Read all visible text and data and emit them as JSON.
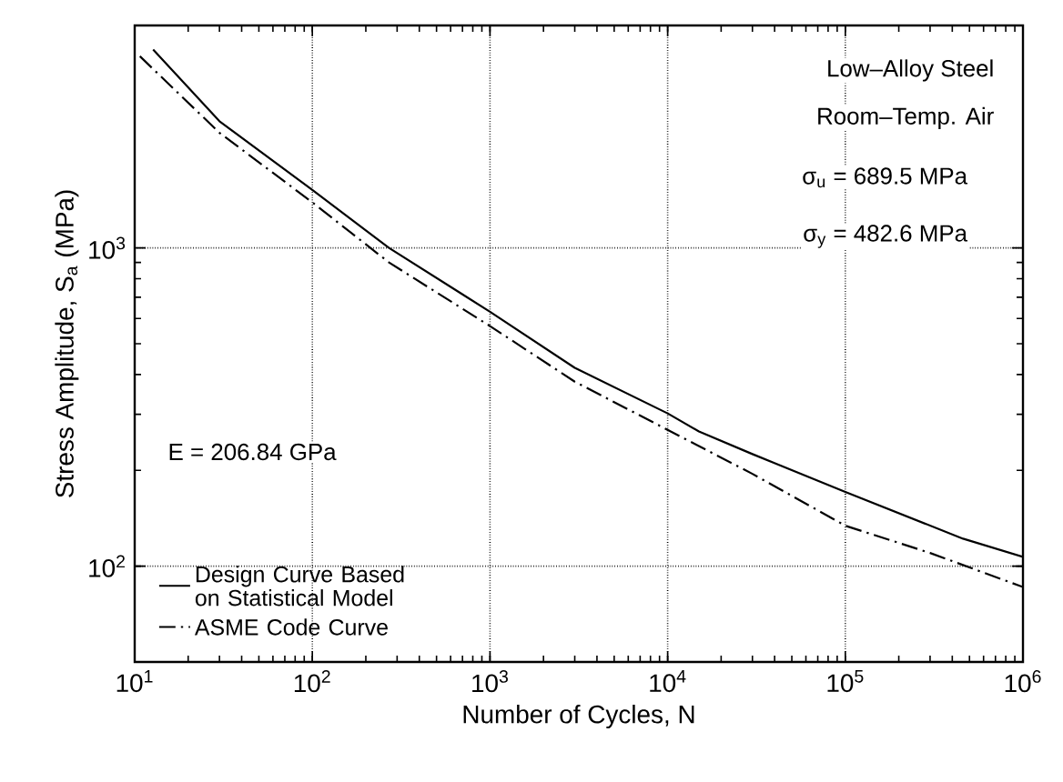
{
  "chart_data": {
    "type": "line",
    "xlabel": "Number of Cycles, N",
    "ylabel": "Stress Amplitude, S$_{a}$ (MPa)",
    "log": "xy",
    "grid": true,
    "legend": "bottom left",
    "xlim": [
      10,
      1000000
    ],
    "ylim": [
      50,
      5000
    ],
    "xticks": [
      {
        "value": 10,
        "label": "10$^{1}$"
      },
      {
        "value": 100,
        "label": "10$^{2}$"
      },
      {
        "value": 1000,
        "label": "10$^{3}$"
      },
      {
        "value": 10000,
        "label": "10$^{4}$"
      },
      {
        "value": 100000,
        "label": "10$^{5}$"
      },
      {
        "value": 1000000,
        "label": "10$^{6}$"
      }
    ],
    "yticks": [
      {
        "value": 100,
        "label": "10$^{2}$"
      },
      {
        "value": 1000,
        "label": "10$^{3}$"
      }
    ],
    "annotations": [
      "Low–Alloy Steel",
      "Room–Temp. Air",
      "σ$_{u}$ = 689.5 MPa",
      "σ$_{y}$ = 482.6 MPa",
      "E = 206.84 GPa"
    ],
    "series": [
      {
        "name": "Design Curve Based on Statistical Model",
        "color": "#000000",
        "line_style": "solid",
        "x": [
          12.7,
          30,
          100,
          270,
          1000,
          3000,
          10000,
          15000,
          30000,
          100000,
          460000,
          1000000
        ],
        "values": [
          4200,
          2500,
          1520,
          1000,
          630,
          420,
          302,
          265,
          225,
          171,
          122,
          107
        ]
      },
      {
        "name": "ASME Code Curve",
        "color": "#000000",
        "line_style": "dashdot",
        "x": [
          10.7,
          30,
          100,
          270,
          1000,
          3000,
          10000,
          30000,
          100000,
          300000,
          1000000
        ],
        "values": [
          4000,
          2300,
          1390,
          900,
          568,
          380,
          268,
          195,
          134,
          110,
          86
        ]
      }
    ]
  }
}
